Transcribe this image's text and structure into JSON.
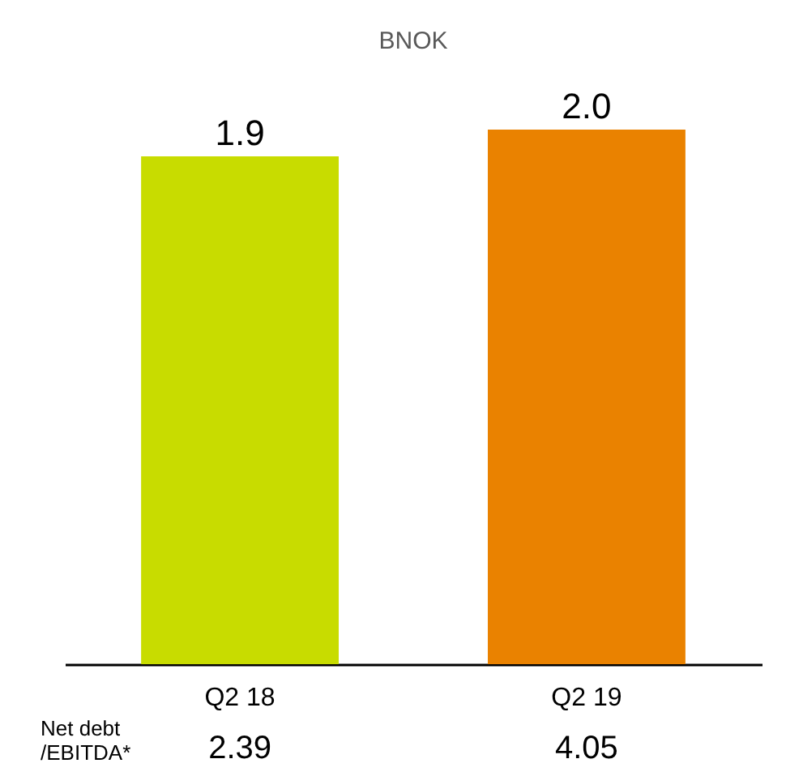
{
  "chart_data": {
    "type": "bar",
    "title": "BNOK",
    "categories": [
      "Q2 18",
      "Q2 19"
    ],
    "values": [
      1.9,
      2.0
    ],
    "value_labels": [
      "1.9",
      "2.0"
    ],
    "colors": [
      "#c8dc00",
      "#ea8200"
    ],
    "annotations": [
      "Net debt\n/EBITDA*",
      "2.39",
      "4.05"
    ]
  }
}
